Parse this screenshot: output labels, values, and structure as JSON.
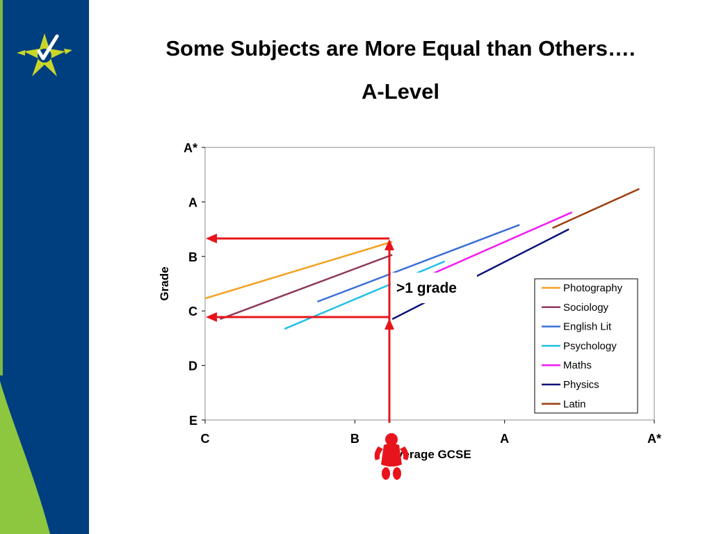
{
  "slide": {
    "title": "Some Subjects are More Equal than Others….",
    "subtitle": "A-Level"
  },
  "colors": {
    "sidebar_blue": "#003f7f",
    "sidebar_green": "#8dc63f",
    "logo_star": "#c8d62b",
    "arrow_red": "#e8141b"
  },
  "icons": {
    "logo": "star-check-logo-icon",
    "person": "person-icon"
  },
  "chart_data": {
    "type": "line",
    "title": "",
    "xlabel": "Average GCSE",
    "ylabel": "Grade",
    "x_ticks": [
      "C",
      "B",
      "A",
      "A*"
    ],
    "y_ticks": [
      "E",
      "D",
      "C",
      "B",
      "A",
      "A*"
    ],
    "xlim": [
      0,
      3
    ],
    "ylim": [
      0,
      5
    ],
    "legend_position": "right",
    "grid": false,
    "series": [
      {
        "name": "Photography",
        "color": "#f3a11f",
        "x": [
          0.0,
          1.25
        ],
        "y": [
          2.23,
          3.27
        ]
      },
      {
        "name": "Sociology",
        "color": "#8e3a5e",
        "x": [
          0.1,
          1.25
        ],
        "y": [
          1.85,
          3.03
        ]
      },
      {
        "name": "English Lit",
        "color": "#3b6fd8",
        "x": [
          0.75,
          2.1
        ],
        "y": [
          2.17,
          3.58
        ]
      },
      {
        "name": "Psychology",
        "color": "#21c0e6",
        "x": [
          0.53,
          1.6
        ],
        "y": [
          1.67,
          2.91
        ]
      },
      {
        "name": "Maths",
        "color": "#f21bf2",
        "x": [
          1.45,
          2.45
        ],
        "y": [
          2.6,
          3.81
        ]
      },
      {
        "name": "Physics",
        "color": "#0b1376",
        "x": [
          1.25,
          2.43
        ],
        "y": [
          1.85,
          3.5
        ]
      },
      {
        "name": "Latin",
        "color": "#9c3d0d",
        "x": [
          2.32,
          2.9
        ],
        "y": [
          3.52,
          4.24
        ]
      }
    ],
    "annotations": [
      {
        "text": ">1 grade"
      }
    ]
  }
}
